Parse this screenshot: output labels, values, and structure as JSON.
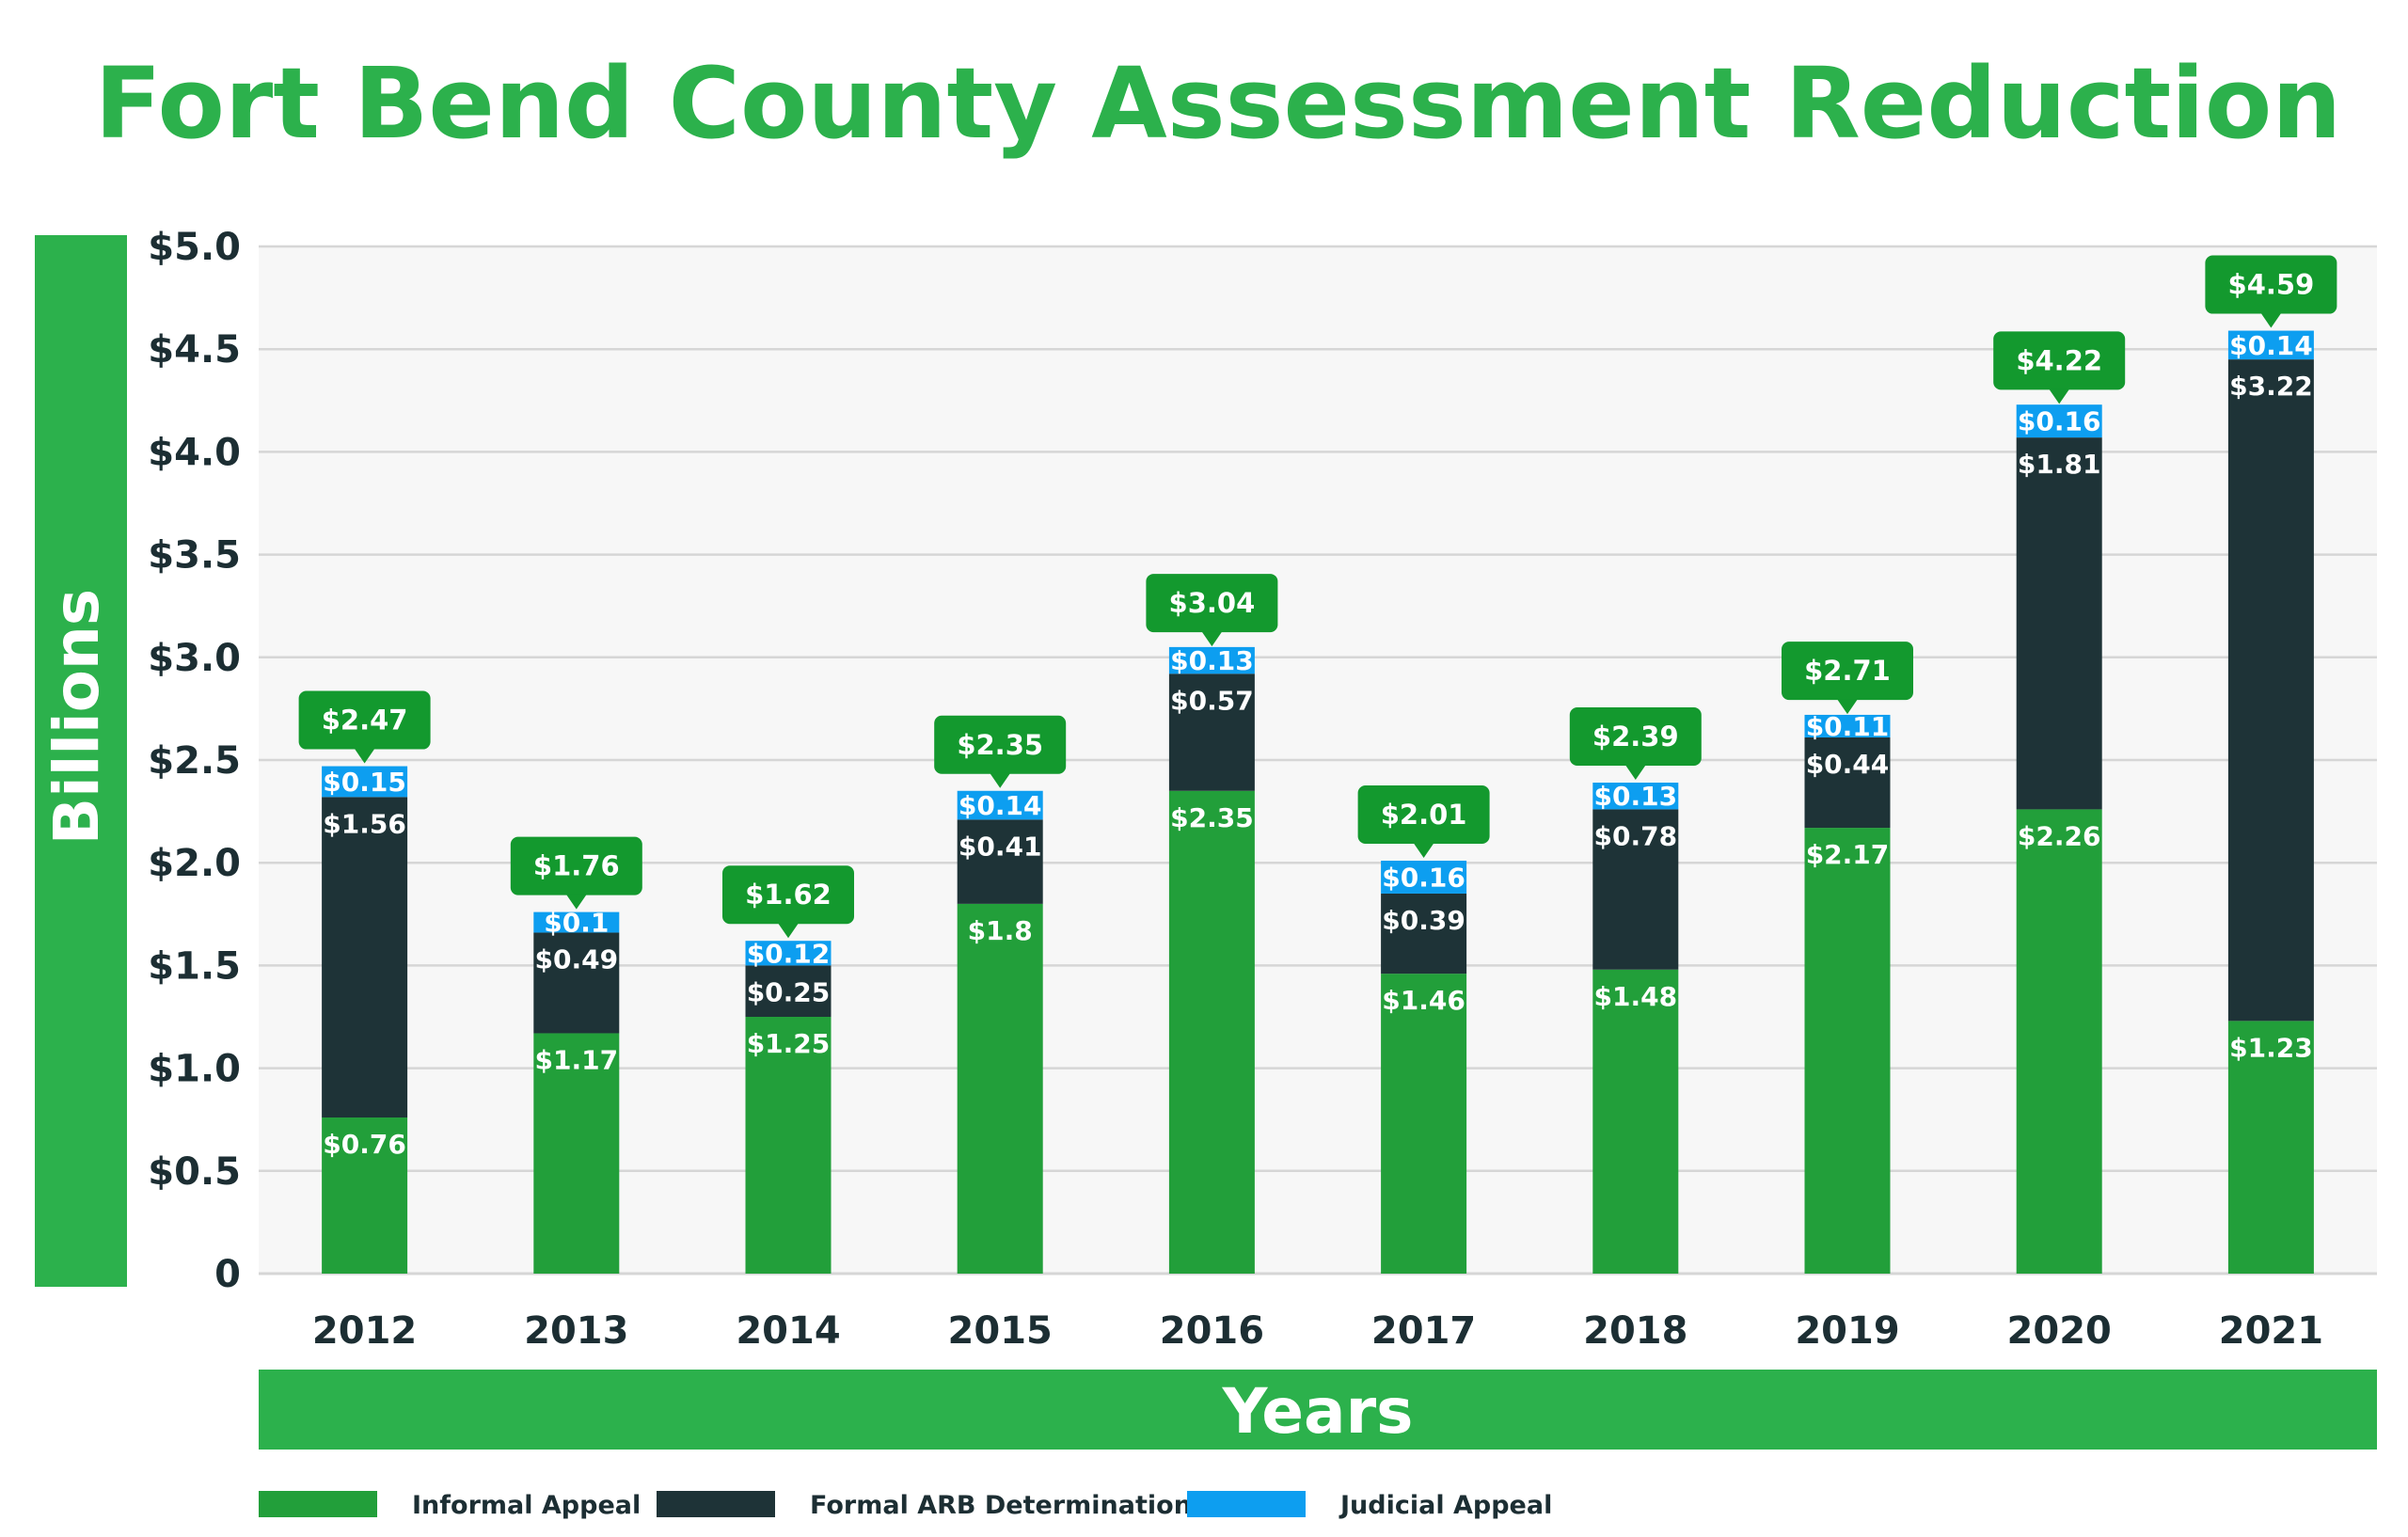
{
  "chart_data": {
    "type": "bar",
    "stacked": true,
    "title": "Fort Bend County Assessment Reduction",
    "xlabel": "Years",
    "ylabel": "Billions",
    "ylim": [
      0,
      5.0
    ],
    "y_ticks": [
      "0",
      "$0.5",
      "$1.0",
      "$1.5",
      "$2.0",
      "$2.5",
      "$3.0",
      "$3.5",
      "$4.0",
      "$4.5",
      "$5.0"
    ],
    "grid": true,
    "legend_position": "bottom-left",
    "categories": [
      "2012",
      "2013",
      "2014",
      "2015",
      "2016",
      "2017",
      "2018",
      "2019",
      "2020",
      "2021"
    ],
    "series": [
      {
        "name": "Informal Appeal",
        "color": "#229f3a",
        "values": [
          0.76,
          1.17,
          1.25,
          1.8,
          2.35,
          1.46,
          1.48,
          2.17,
          2.26,
          1.23
        ],
        "labels": [
          "$0.76",
          "$1.17",
          "$1.25",
          "$1.8",
          "$2.35",
          "$1.46",
          "$1.48",
          "$2.17",
          "$2.26",
          "$1.23"
        ]
      },
      {
        "name": "Formal ARB Determination",
        "color": "#1e3337",
        "values": [
          1.56,
          0.49,
          0.25,
          0.41,
          0.57,
          0.39,
          0.78,
          0.44,
          1.81,
          3.22
        ],
        "labels": [
          "$1.56",
          "$0.49",
          "$0.25",
          "$0.41",
          "$0.57",
          "$0.39",
          "$0.78",
          "$0.44",
          "$1.81",
          "$3.22"
        ]
      },
      {
        "name": "Judicial Appeal",
        "color": "#0d9ef0",
        "values": [
          0.15,
          0.1,
          0.12,
          0.14,
          0.13,
          0.16,
          0.13,
          0.11,
          0.16,
          0.14
        ],
        "labels": [
          "$0.15",
          "$0.1",
          "$0.12",
          "$0.14",
          "$0.13",
          "$0.16",
          "$0.13",
          "$0.11",
          "$0.16",
          "$0.14"
        ]
      }
    ],
    "totals": [
      2.47,
      1.76,
      1.62,
      2.35,
      3.04,
      2.01,
      2.39,
      2.71,
      4.22,
      4.59
    ],
    "total_labels": [
      "$2.47",
      "$1.76",
      "$1.62",
      "$2.35",
      "$3.04",
      "$2.01",
      "$2.39",
      "$2.71",
      "$4.22",
      "$4.59"
    ]
  },
  "colors": {
    "title": "#2cb14c",
    "axis_band": "#2cb14c",
    "total_callout": "#13992e",
    "plot_background": "#f7f7f7",
    "grid": "#d6d6d6",
    "tick_text": "#1c2e33"
  }
}
